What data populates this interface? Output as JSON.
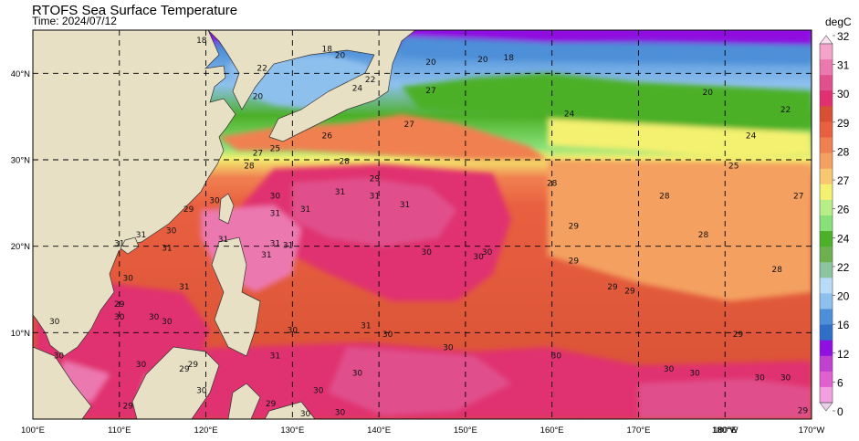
{
  "title": "RTOFS Sea Surface Temperature",
  "subtitle": "Time: 2024/07/12",
  "map": {
    "lon_range": [
      100,
      190
    ],
    "lat_range": [
      0,
      45
    ],
    "lon_ticks": [
      {
        "value": 100,
        "label": "100°E"
      },
      {
        "value": 110,
        "label": "110°E"
      },
      {
        "value": 120,
        "label": "120°E"
      },
      {
        "value": 130,
        "label": "130°E"
      },
      {
        "value": 140,
        "label": "140°E"
      },
      {
        "value": 150,
        "label": "150°E"
      },
      {
        "value": 160,
        "label": "160°E"
      },
      {
        "value": 170,
        "label": "170°E"
      },
      {
        "value": 180,
        "label": "180°W"
      },
      {
        "value": 180,
        "label": "180°E"
      },
      {
        "value": 190,
        "label": "170°W"
      }
    ],
    "lat_ticks": [
      {
        "value": 10,
        "label": "10°N"
      },
      {
        "value": 20,
        "label": "20°N"
      },
      {
        "value": 30,
        "label": "30°N"
      },
      {
        "value": 40,
        "label": "40°N"
      }
    ],
    "grid": true,
    "land_color": "#e8e0c4"
  },
  "colorbar": {
    "unit": "degC",
    "levels": [
      0,
      6,
      12,
      16,
      20,
      22,
      24,
      26,
      27,
      28,
      29,
      30,
      31,
      32
    ],
    "colors": [
      "#ead0ea",
      "#f2a0e0",
      "#e060d0",
      "#c040d0",
      "#9010e0",
      "#2f6fc8",
      "#4d8fd8",
      "#8ec0ee",
      "#b8dcf8",
      "#8cc4a0",
      "#6cb050",
      "#4cb028",
      "#88e078",
      "#b8ee88",
      "#f4f070",
      "#f8c870",
      "#f4a060",
      "#f08050",
      "#e86040",
      "#d85034",
      "#e03070",
      "#e0508c",
      "#ec78b0",
      "#f4a4c8",
      "#fae0f0"
    ]
  },
  "contour_labels": [
    {
      "lon": 119.5,
      "lat": 43.5,
      "text": "18"
    },
    {
      "lon": 126,
      "lat": 37,
      "text": "20"
    },
    {
      "lon": 126.5,
      "lat": 40.3,
      "text": "22"
    },
    {
      "lon": 134,
      "lat": 42.5,
      "text": "18"
    },
    {
      "lon": 135.5,
      "lat": 41.8,
      "text": "20"
    },
    {
      "lon": 137.5,
      "lat": 38,
      "text": "24"
    },
    {
      "lon": 139,
      "lat": 39,
      "text": "22"
    },
    {
      "lon": 146,
      "lat": 41,
      "text": "20"
    },
    {
      "lon": 152,
      "lat": 41.3,
      "text": "20"
    },
    {
      "lon": 155,
      "lat": 41.5,
      "text": "18"
    },
    {
      "lon": 146,
      "lat": 37.7,
      "text": "27"
    },
    {
      "lon": 126,
      "lat": 30.5,
      "text": "27"
    },
    {
      "lon": 128,
      "lat": 31,
      "text": "25"
    },
    {
      "lon": 134,
      "lat": 32.5,
      "text": "26"
    },
    {
      "lon": 136,
      "lat": 29.5,
      "text": "28"
    },
    {
      "lon": 143.5,
      "lat": 33.8,
      "text": "27"
    },
    {
      "lon": 162,
      "lat": 35,
      "text": "24"
    },
    {
      "lon": 178,
      "lat": 37.5,
      "text": "20"
    },
    {
      "lon": 187,
      "lat": 35.5,
      "text": "22"
    },
    {
      "lon": 183,
      "lat": 32.5,
      "text": "24"
    },
    {
      "lon": 181,
      "lat": 29,
      "text": "25"
    },
    {
      "lon": 188.5,
      "lat": 25.5,
      "text": "27"
    },
    {
      "lon": 160,
      "lat": 27,
      "text": "28"
    },
    {
      "lon": 173,
      "lat": 25.5,
      "text": "28"
    },
    {
      "lon": 162.5,
      "lat": 22,
      "text": "29"
    },
    {
      "lon": 177.5,
      "lat": 21,
      "text": "28"
    },
    {
      "lon": 186,
      "lat": 17,
      "text": "28"
    },
    {
      "lon": 125,
      "lat": 29,
      "text": "28"
    },
    {
      "lon": 118,
      "lat": 24,
      "text": "29"
    },
    {
      "lon": 121,
      "lat": 25,
      "text": "30"
    },
    {
      "lon": 116,
      "lat": 21.5,
      "text": "30"
    },
    {
      "lon": 112.5,
      "lat": 21,
      "text": "31"
    },
    {
      "lon": 110,
      "lat": 20,
      "text": "31"
    },
    {
      "lon": 115.5,
      "lat": 19.5,
      "text": "31"
    },
    {
      "lon": 122,
      "lat": 20.5,
      "text": "31"
    },
    {
      "lon": 128,
      "lat": 20,
      "text": "31"
    },
    {
      "lon": 129.5,
      "lat": 19.8,
      "text": "31"
    },
    {
      "lon": 127,
      "lat": 18.7,
      "text": "31"
    },
    {
      "lon": 128,
      "lat": 23.5,
      "text": "31"
    },
    {
      "lon": 131.5,
      "lat": 24,
      "text": "31"
    },
    {
      "lon": 135.5,
      "lat": 26,
      "text": "31"
    },
    {
      "lon": 139.5,
      "lat": 25.5,
      "text": "31"
    },
    {
      "lon": 143,
      "lat": 24.5,
      "text": "31"
    },
    {
      "lon": 128,
      "lat": 25.5,
      "text": "30"
    },
    {
      "lon": 139.5,
      "lat": 27.5,
      "text": "29"
    },
    {
      "lon": 151.5,
      "lat": 18.5,
      "text": "30"
    },
    {
      "lon": 152.5,
      "lat": 19,
      "text": "30"
    },
    {
      "lon": 162.5,
      "lat": 18,
      "text": "29"
    },
    {
      "lon": 167,
      "lat": 15,
      "text": "29"
    },
    {
      "lon": 169,
      "lat": 14.5,
      "text": "29"
    },
    {
      "lon": 111,
      "lat": 16,
      "text": "30"
    },
    {
      "lon": 117.5,
      "lat": 15,
      "text": "31"
    },
    {
      "lon": 110,
      "lat": 13,
      "text": "29"
    },
    {
      "lon": 110,
      "lat": 11.5,
      "text": "30"
    },
    {
      "lon": 114,
      "lat": 11.5,
      "text": "30"
    },
    {
      "lon": 115.5,
      "lat": 11,
      "text": "30"
    },
    {
      "lon": 102.5,
      "lat": 11,
      "text": "30"
    },
    {
      "lon": 103,
      "lat": 7,
      "text": "30"
    },
    {
      "lon": 112.5,
      "lat": 6,
      "text": "30"
    },
    {
      "lon": 118.5,
      "lat": 6,
      "text": "29"
    },
    {
      "lon": 117.5,
      "lat": 5.5,
      "text": "29"
    },
    {
      "lon": 119.5,
      "lat": 3,
      "text": "30"
    },
    {
      "lon": 130,
      "lat": 10,
      "text": "30"
    },
    {
      "lon": 128,
      "lat": 7,
      "text": "31"
    },
    {
      "lon": 138.5,
      "lat": 10.5,
      "text": "31"
    },
    {
      "lon": 141,
      "lat": 9.5,
      "text": "30"
    },
    {
      "lon": 137.5,
      "lat": 5,
      "text": "30"
    },
    {
      "lon": 133,
      "lat": 3,
      "text": "30"
    },
    {
      "lon": 127.5,
      "lat": 1.5,
      "text": "29"
    },
    {
      "lon": 111,
      "lat": 1.2,
      "text": "29"
    },
    {
      "lon": 131.5,
      "lat": 0.3,
      "text": "30"
    },
    {
      "lon": 135.5,
      "lat": 0.5,
      "text": "30"
    },
    {
      "lon": 160.5,
      "lat": 7,
      "text": "30"
    },
    {
      "lon": 173.5,
      "lat": 5.5,
      "text": "30"
    },
    {
      "lon": 176.5,
      "lat": 5,
      "text": "30"
    },
    {
      "lon": 181.5,
      "lat": 9.5,
      "text": "29"
    },
    {
      "lon": 184,
      "lat": 4.5,
      "text": "30"
    },
    {
      "lon": 187,
      "lat": 4.5,
      "text": "30"
    },
    {
      "lon": 189,
      "lat": 0.7,
      "text": "29"
    },
    {
      "lon": 148,
      "lat": 8,
      "text": "30"
    },
    {
      "lon": 145.5,
      "lat": 19,
      "text": "30"
    }
  ]
}
